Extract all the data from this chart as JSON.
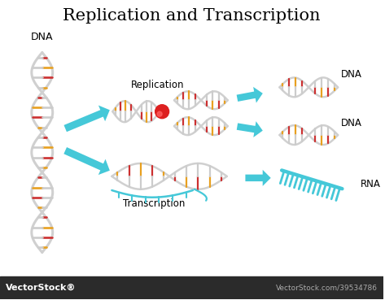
{
  "title": "Replication and Transcription",
  "title_fontsize": 15,
  "title_font": "DejaVu Serif",
  "bg_color": "#ffffff",
  "footer_color": "#2b2b2b",
  "footer_text": "VectorStock®",
  "footer_url": "VectorStock.com/39534786",
  "arrow_color": "#45c8d8",
  "backbone_color": "#d0d0d0",
  "bar_colors_warm": [
    "#e8a020",
    "#cc3030",
    "#e8a020",
    "#cc3030"
  ],
  "bar_colors_rna": [
    "#45c8d8"
  ],
  "rna_color": "#45c8d8",
  "label_fontsize": 8,
  "labels": {
    "DNA_left": "DNA",
    "Replication": "Replication",
    "Transcription": "Transcription",
    "DNA_top": "DNA",
    "DNA_mid": "DNA",
    "RNA": "RNA"
  }
}
